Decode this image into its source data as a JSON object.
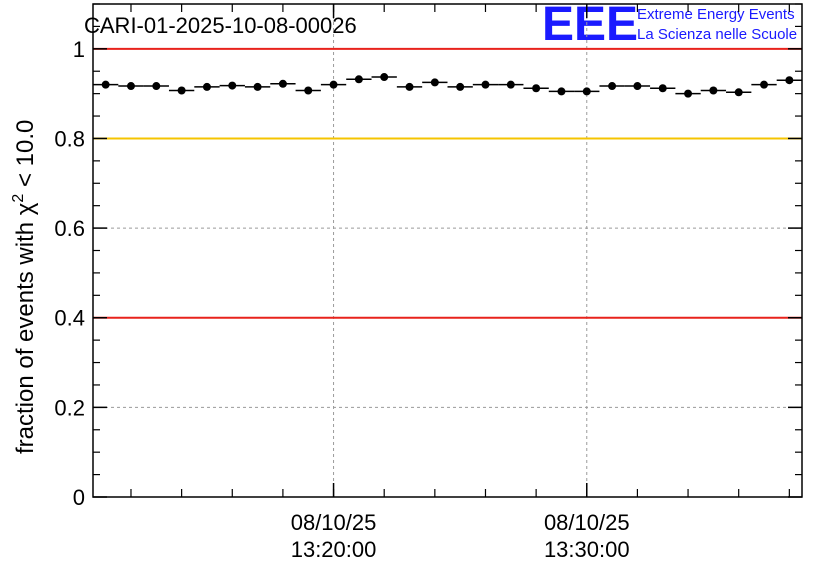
{
  "chart_data": {
    "type": "scatter",
    "title": "CARI-01-2025-10-08-00026",
    "ylabel_main": "fraction of events with ",
    "ylabel_symbol": "χ",
    "ylabel_exp": "2",
    "ylabel_tail": " < 10.0",
    "xlabel": "",
    "ylim": [
      0,
      1.1
    ],
    "xlim": [
      0,
      28
    ],
    "y_ticks": [
      "0",
      "0.2",
      "0.4",
      "0.6",
      "0.8",
      "1"
    ],
    "y_tick_values": [
      0,
      0.2,
      0.4,
      0.6,
      0.8,
      1.0
    ],
    "x_ticks": [
      {
        "x": 9.5,
        "date": "08/10/25",
        "time": "13:20:00"
      },
      {
        "x": 19.5,
        "date": "08/10/25",
        "time": "13:30:00"
      }
    ],
    "grid": true,
    "reference_lines": [
      {
        "y": 1.0,
        "color": "#e8231c"
      },
      {
        "y": 0.8,
        "color": "#f5c400"
      },
      {
        "y": 0.4,
        "color": "#e8231c"
      }
    ],
    "series": [
      {
        "name": "fraction",
        "x": [
          0.5,
          1.5,
          2.5,
          3.5,
          4.5,
          5.5,
          6.5,
          7.5,
          8.5,
          9.5,
          10.5,
          11.5,
          12.5,
          13.5,
          14.5,
          15.5,
          16.5,
          17.5,
          18.5,
          19.5,
          20.5,
          21.5,
          22.5,
          23.5,
          24.5,
          25.5,
          26.5,
          27.5
        ],
        "values": [
          0.92,
          0.917,
          0.917,
          0.907,
          0.915,
          0.918,
          0.915,
          0.922,
          0.907,
          0.92,
          0.932,
          0.937,
          0.915,
          0.925,
          0.915,
          0.92,
          0.92,
          0.912,
          0.905,
          0.905,
          0.917,
          0.917,
          0.912,
          0.9,
          0.907,
          0.903,
          0.92,
          0.93
        ]
      }
    ]
  },
  "logo": {
    "letters": "EEE",
    "line1": "Extreme Energy Events",
    "line2": "La Scienza nelle Scuole"
  }
}
